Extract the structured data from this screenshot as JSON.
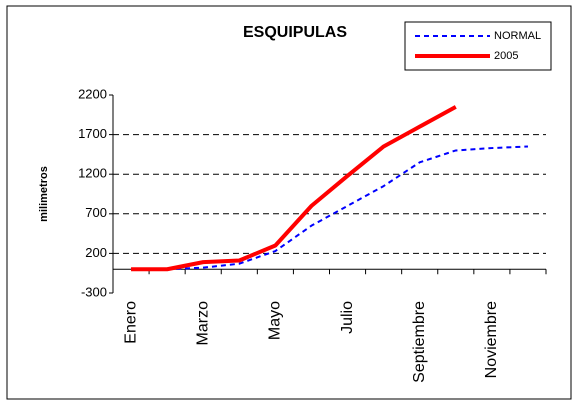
{
  "chart_data": {
    "type": "line",
    "title": "ESQUIPULAS",
    "y_label": "milimetros",
    "categories": [
      "Enero",
      null,
      "Marzo",
      null,
      "Mayo",
      null,
      "Julio",
      null,
      "Septiembre",
      null,
      "Noviembre",
      null
    ],
    "series": [
      {
        "name": "NORMAL",
        "color": "#0000ff",
        "style": "dashed",
        "values": [
          0,
          0,
          20,
          70,
          230,
          550,
          800,
          1050,
          1350,
          1500,
          1530,
          1550
        ]
      },
      {
        "name": "2005",
        "color": "#ff0000",
        "style": "solid",
        "values": [
          0,
          0,
          90,
          110,
          300,
          800,
          1180,
          1550,
          1800,
          2050,
          null,
          null
        ]
      }
    ],
    "ylim": [
      -300,
      2200
    ],
    "yticks": [
      -300,
      200,
      700,
      1200,
      1700,
      2200
    ],
    "grid": true,
    "legend": "upper right"
  }
}
